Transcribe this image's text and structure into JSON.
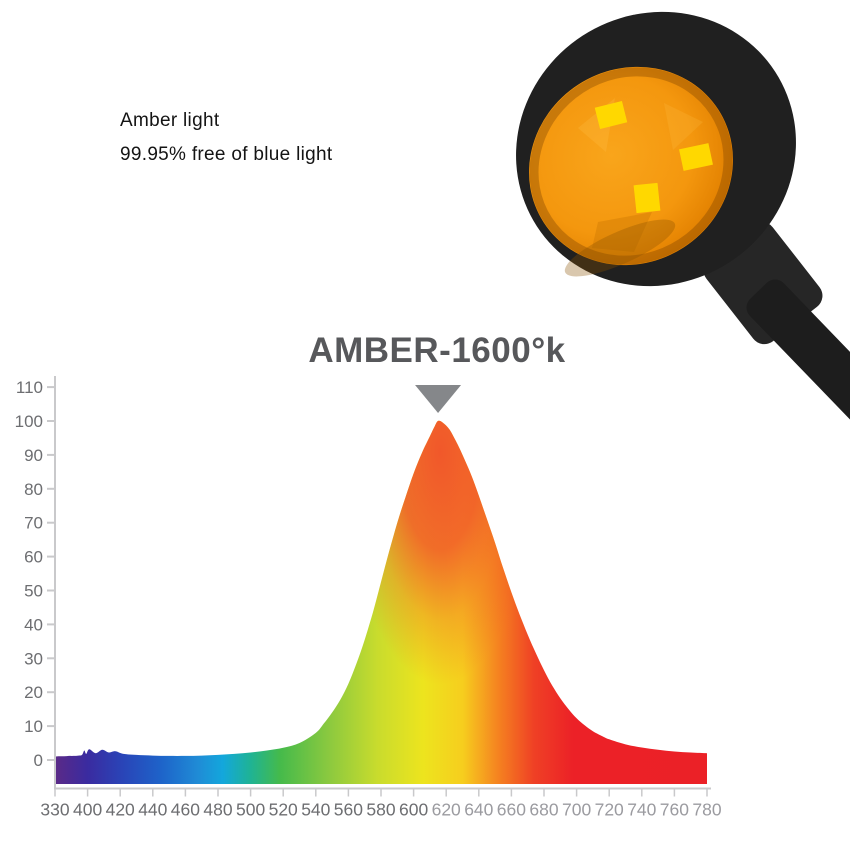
{
  "page": {
    "background": "#FFFFFF"
  },
  "header": {
    "line1": "Amber light",
    "line2": "99.95% free of blue light"
  },
  "product_image": {
    "description": "Black round gooseneck lamp head, tilted, with glowing amber lens and three yellow LED chips; black neck runs to bottom-right corner",
    "body_color": "#202020",
    "joint_color": "#262626",
    "tube_color": "#1D1D1D",
    "lens_color": "#F9A51B",
    "chip_color": "#FFD800",
    "led_chip_count": 3
  },
  "chart_data": {
    "type": "area",
    "title": "AMBER-1600°k",
    "title_color": "#57585B",
    "xlabel": "",
    "ylabel": "",
    "grid": false,
    "legend": "none",
    "ylim": [
      0,
      110
    ],
    "x_tick_labels": [
      "330",
      "400",
      "420",
      "440",
      "460",
      "480",
      "500",
      "520",
      "540",
      "560",
      "580",
      "600",
      "620",
      "640",
      "660",
      "680",
      "700",
      "720",
      "740",
      "760",
      "780"
    ],
    "y_tick_labels": [
      "0",
      "10",
      "20",
      "30",
      "40",
      "50",
      "60",
      "70",
      "80",
      "90",
      "100",
      "110"
    ],
    "axis_color": "#C9C9CB",
    "label_color": "#6D6E71",
    "label_color_faded": "#9B9BA0",
    "peak": {
      "wavelength": 615,
      "value": 100,
      "marker": "down-triangle",
      "marker_color": "#85878A"
    },
    "peak_glow_color": "#F1512B",
    "spectrum_gradient": [
      [
        330,
        "#5B2A87"
      ],
      [
        400,
        "#3A2BA0"
      ],
      [
        422,
        "#2945B8"
      ],
      [
        445,
        "#1E63C9"
      ],
      [
        468,
        "#1F8CD6"
      ],
      [
        483,
        "#13A7DC"
      ],
      [
        500,
        "#1FB394"
      ],
      [
        518,
        "#45BA4B"
      ],
      [
        548,
        "#8BC93F"
      ],
      [
        578,
        "#C9DC2D"
      ],
      [
        606,
        "#EDE41E"
      ],
      [
        630,
        "#F6CE1E"
      ],
      [
        652,
        "#F58220"
      ],
      [
        674,
        "#EF4025"
      ],
      [
        698,
        "#EC2127"
      ],
      [
        780,
        "#EB2127"
      ]
    ],
    "series": [
      {
        "name": "amber-spectrum",
        "points": [
          [
            330,
            1
          ],
          [
            340,
            1.1
          ],
          [
            350,
            1.1
          ],
          [
            360,
            1.2
          ],
          [
            370,
            1.2
          ],
          [
            380,
            1.3
          ],
          [
            388,
            1.5
          ],
          [
            393,
            2.8
          ],
          [
            397,
            1.8
          ],
          [
            401,
            3.2
          ],
          [
            405,
            2
          ],
          [
            409,
            3
          ],
          [
            413,
            2.2
          ],
          [
            417,
            2.6
          ],
          [
            422,
            1.8
          ],
          [
            430,
            1.5
          ],
          [
            440,
            1.3
          ],
          [
            450,
            1.2
          ],
          [
            460,
            1.2
          ],
          [
            470,
            1.3
          ],
          [
            480,
            1.5
          ],
          [
            490,
            1.8
          ],
          [
            500,
            2.2
          ],
          [
            510,
            2.8
          ],
          [
            520,
            3.6
          ],
          [
            530,
            5
          ],
          [
            540,
            8
          ],
          [
            545,
            10.8
          ],
          [
            550,
            14
          ],
          [
            555,
            17.8
          ],
          [
            560,
            22.5
          ],
          [
            565,
            28.5
          ],
          [
            570,
            35.5
          ],
          [
            575,
            43.5
          ],
          [
            580,
            52.5
          ],
          [
            585,
            61.5
          ],
          [
            590,
            70
          ],
          [
            595,
            77.5
          ],
          [
            600,
            84.5
          ],
          [
            605,
            90.5
          ],
          [
            610,
            95.5
          ],
          [
            613,
            98.5
          ],
          [
            615,
            100
          ],
          [
            618,
            99.5
          ],
          [
            622,
            97.5
          ],
          [
            626,
            94
          ],
          [
            630,
            90
          ],
          [
            635,
            84.5
          ],
          [
            640,
            78
          ],
          [
            645,
            71
          ],
          [
            650,
            64
          ],
          [
            655,
            56.5
          ],
          [
            660,
            49.5
          ],
          [
            665,
            43
          ],
          [
            670,
            37
          ],
          [
            675,
            31.5
          ],
          [
            680,
            26.5
          ],
          [
            685,
            22
          ],
          [
            690,
            18.2
          ],
          [
            695,
            15
          ],
          [
            700,
            12.3
          ],
          [
            705,
            10.2
          ],
          [
            710,
            8.5
          ],
          [
            715,
            7.2
          ],
          [
            720,
            6.1
          ],
          [
            730,
            4.6
          ],
          [
            740,
            3.7
          ],
          [
            750,
            3
          ],
          [
            760,
            2.5
          ],
          [
            770,
            2.2
          ],
          [
            780,
            2
          ]
        ]
      }
    ]
  }
}
